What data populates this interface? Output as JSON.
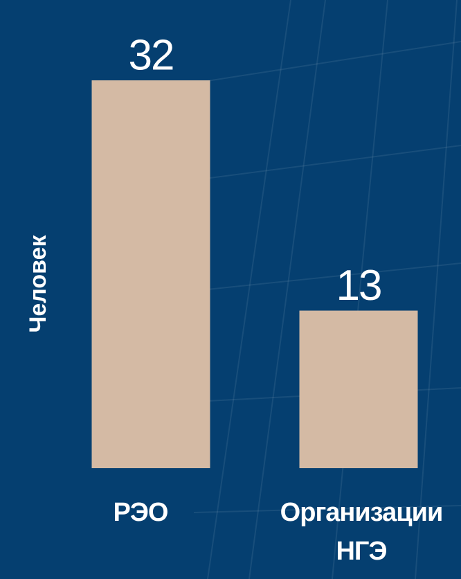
{
  "chart_data": {
    "type": "bar",
    "y_label": "Человек",
    "categories": [
      "РЭО",
      "Организации НГЭ"
    ],
    "values": [
      32,
      13
    ],
    "color": "#d4baa4"
  }
}
